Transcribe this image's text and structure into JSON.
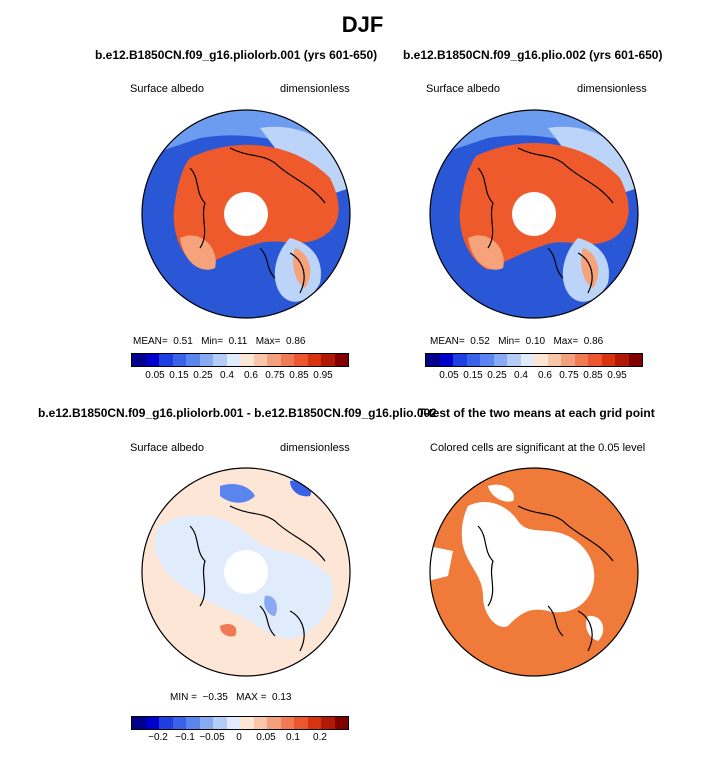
{
  "main_title": "DJF",
  "panels": {
    "top_left": {
      "title": "b.e12.B1850CN.f09_g16.pliolorb.001 (yrs 601-650)",
      "variable": "Surface albedo",
      "units": "dimensionless",
      "stats": {
        "mean_label": "MEAN=",
        "mean": "0.51",
        "min_label": "Min=",
        "min": "0.11",
        "max_label": "Max=",
        "max": "0.86"
      }
    },
    "top_right": {
      "title": "b.e12.B1850CN.f09_g16.plio.002 (yrs 601-650)",
      "variable": "Surface albedo",
      "units": "dimensionless",
      "stats": {
        "mean_label": "MEAN=",
        "mean": "0.52",
        "min_label": "Min=",
        "min": "0.10",
        "max_label": "Max=",
        "max": "0.86"
      }
    },
    "bottom_left": {
      "title": "b.e12.B1850CN.f09_g16.pliolorb.001 - b.e12.B1850CN.f09_g16.plio.002",
      "variable": "Surface albedo",
      "units": "dimensionless",
      "stats": {
        "min_label": "MIN =",
        "min": "−0.35",
        "max_label": "MAX =",
        "max": "0.13"
      }
    },
    "bottom_right": {
      "title": "T-test of the two means at each grid point",
      "note": "Colored cells are significant at the 0.05 level"
    }
  },
  "colorbars": {
    "absolute": {
      "colors": [
        "#00008b",
        "#0000cd",
        "#1e3ee0",
        "#3a62e8",
        "#5b85ee",
        "#87aaf3",
        "#b4cdf7",
        "#e0ebfb",
        "#fde6d6",
        "#f9c6aa",
        "#f5a07d",
        "#f07a53",
        "#eb5530",
        "#d8330f",
        "#b01a05",
        "#800000"
      ],
      "ticks": [
        "0.05",
        "0.15",
        "0.25",
        "0.4",
        "0.6",
        "0.75",
        "0.85",
        "0.95"
      ]
    },
    "difference": {
      "colors": [
        "#00008b",
        "#0000cd",
        "#1e3ee0",
        "#3a62e8",
        "#5b85ee",
        "#87aaf3",
        "#b4cdf7",
        "#e0ebfb",
        "#fde6d6",
        "#f9c6aa",
        "#f5a07d",
        "#f07a53",
        "#eb5530",
        "#d8330f",
        "#b01a05",
        "#800000"
      ],
      "ticks": [
        "−0.2",
        "−0.1",
        "−0.05",
        "0",
        "0.05",
        "0.1",
        "0.2"
      ]
    }
  },
  "map_colors": {
    "blue_dark": "#2a57d6",
    "blue_mid": "#6b9cf0",
    "blue_light": "#bcd4f8",
    "orange": "#ee5a2c",
    "orange_light": "#f6a27a",
    "peach": "#fde6d6",
    "sig_orange": "#f07a3a",
    "coast": "#000000"
  }
}
